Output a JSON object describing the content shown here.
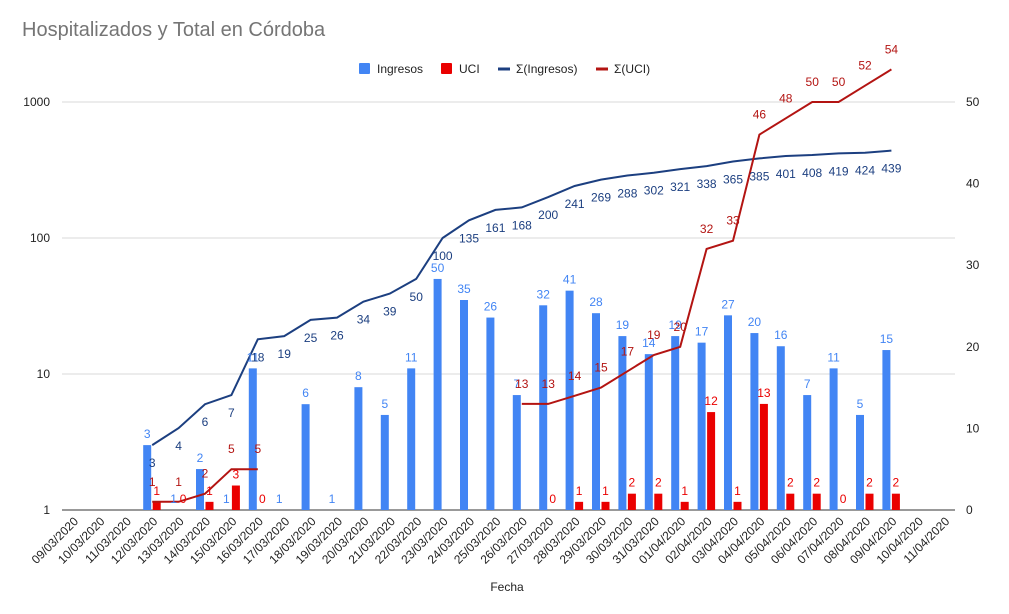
{
  "chart_data": {
    "type": "bar",
    "title": "Hospitalizados y Total en Córdoba",
    "xlabel": "Fecha",
    "ylabel": "",
    "y_scale": "log",
    "ylim": [
      1,
      1000
    ],
    "y_ticks": [
      "1",
      "10",
      "100",
      "1000"
    ],
    "y2lim": [
      0,
      50
    ],
    "y2_ticks": [
      "0",
      "10",
      "20",
      "30",
      "40",
      "50"
    ],
    "legend_position": "top",
    "grid": true,
    "colors": {
      "Ingresos": "#4285f4",
      "UCI": "#ea0000",
      "sum_ingresos": "#1c3f80",
      "sum_uci": "#b31412"
    },
    "categories": [
      "09/03/2020",
      "10/03/2020",
      "11/03/2020",
      "12/03/2020",
      "13/03/2020",
      "14/03/2020",
      "15/03/2020",
      "16/03/2020",
      "17/03/2020",
      "18/03/2020",
      "19/03/2020",
      "20/03/2020",
      "21/03/2020",
      "22/03/2020",
      "23/03/2020",
      "24/03/2020",
      "25/03/2020",
      "26/03/2020",
      "27/03/2020",
      "28/03/2020",
      "29/03/2020",
      "30/03/2020",
      "31/03/2020",
      "01/04/2020",
      "02/04/2020",
      "03/04/2020",
      "04/04/2020",
      "05/04/2020",
      "06/04/2020",
      "07/04/2020",
      "08/04/2020",
      "09/04/2020",
      "10/04/2020",
      "11/04/2020"
    ],
    "series": [
      {
        "name": "Ingresos",
        "type": "bar",
        "axis": "left",
        "values": [
          null,
          null,
          null,
          3,
          1,
          2,
          1,
          11,
          1,
          6,
          1,
          8,
          5,
          11,
          50,
          35,
          26,
          7,
          32,
          41,
          28,
          19,
          14,
          19,
          17,
          27,
          20,
          16,
          7,
          11,
          5,
          15,
          null,
          null
        ],
        "labels": [
          "",
          "",
          "",
          "3",
          "1",
          "2",
          "1",
          "11",
          "1",
          "6",
          "1",
          "8",
          "5",
          "11",
          "50",
          "35",
          "26",
          "7",
          "32",
          "41",
          "28",
          "19",
          "14",
          "19",
          "17",
          "27",
          "20",
          "16",
          "7",
          "11",
          "5",
          "15",
          "",
          ""
        ]
      },
      {
        "name": "UCI",
        "type": "bar",
        "axis": "right",
        "values": [
          null,
          null,
          null,
          1,
          0,
          1,
          3,
          0,
          null,
          null,
          null,
          null,
          null,
          null,
          null,
          null,
          null,
          null,
          0,
          1,
          1,
          2,
          2,
          1,
          12,
          1,
          13,
          2,
          2,
          0,
          2,
          2,
          null,
          null
        ],
        "labels": [
          "",
          "",
          "",
          "1",
          "0",
          "1",
          "3",
          "0",
          "",
          "",
          "",
          "",
          "",
          "",
          "",
          "",
          "",
          "",
          "0",
          "1",
          "1",
          "2",
          "2",
          "1",
          "12",
          "1",
          "13",
          "2",
          "2",
          "0",
          "2",
          "2",
          "",
          ""
        ]
      },
      {
        "name": "Σ(Ingresos)",
        "type": "line",
        "axis": "left",
        "values": [
          null,
          null,
          null,
          3,
          4,
          6,
          7,
          18,
          19,
          25,
          26,
          34,
          39,
          50,
          100,
          135,
          161,
          168,
          200,
          241,
          269,
          288,
          302,
          321,
          338,
          365,
          385,
          401,
          408,
          419,
          424,
          439,
          null,
          null
        ],
        "labels": [
          "",
          "",
          "",
          "3",
          "4",
          "6",
          "7",
          "18",
          "19",
          "25",
          "26",
          "34",
          "39",
          "50",
          "100",
          "135",
          "161",
          "168",
          "200",
          "241",
          "269",
          "288",
          "302",
          "321",
          "338",
          "365",
          "385",
          "401",
          "408",
          "419",
          "424",
          "439",
          "",
          ""
        ]
      },
      {
        "name": "Σ(UCI)",
        "type": "line",
        "axis": "right",
        "values": [
          null,
          null,
          null,
          1,
          1,
          2,
          5,
          5,
          null,
          null,
          null,
          null,
          null,
          null,
          null,
          null,
          null,
          13,
          13,
          14,
          15,
          17,
          19,
          20,
          32,
          33,
          46,
          48,
          50,
          50,
          52,
          54,
          null,
          null
        ],
        "labels": [
          "",
          "",
          "",
          "1",
          "1",
          "2",
          "5",
          "5",
          "",
          "",
          "",
          "",
          "",
          "",
          "",
          "",
          "",
          "13",
          "13",
          "14",
          "15",
          "17",
          "19",
          "20",
          "32",
          "33",
          "46",
          "48",
          "50",
          "50",
          "52",
          "54",
          "",
          ""
        ]
      }
    ]
  }
}
